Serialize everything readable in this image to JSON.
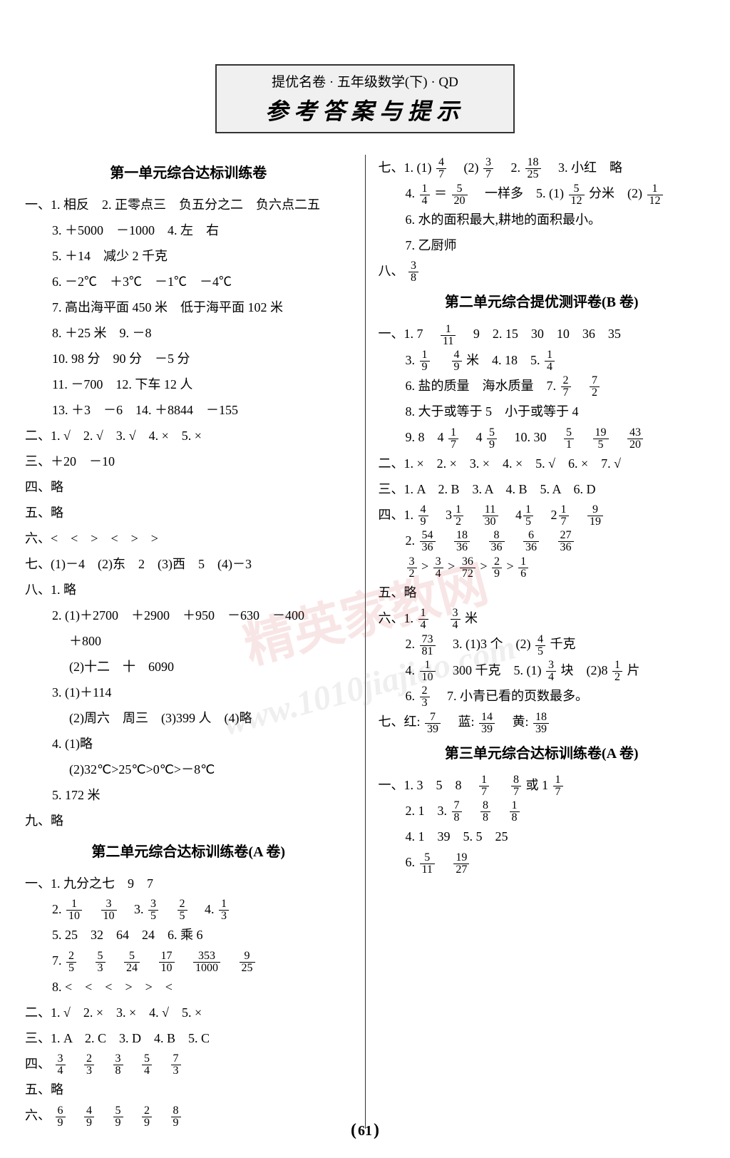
{
  "header": {
    "top": "提优名卷 · 五年级数学(下) · QD",
    "main": "参考答案与提示"
  },
  "page_number": "61",
  "watermark1": "精英家教网",
  "watermark2": "www.1010jiajiao.com",
  "left": {
    "s1_title": "第一单元综合达标训练卷",
    "l1": "一、1. 相反　2. 正零点三　负五分之二　负六点二五",
    "l2": "3. ＋5000　－1000　4. 左　右",
    "l3": "5. ＋14　减少 2 千克",
    "l4": "6. －2℃　＋3℃　－1℃　－4℃",
    "l5": "7. 高出海平面 450 米　低于海平面 102 米",
    "l6": "8. ＋25 米　9. －8",
    "l7": "10. 98 分　90 分　－5 分",
    "l8": "11. －700　12. 下车 12 人",
    "l9": "13. ＋3　－6　14. ＋8844　－155",
    "l10": "二、1. √　2. √　3. √　4. ×　5. ×",
    "l11": "三、＋20　－10",
    "l12": "四、略",
    "l13": "五、略",
    "l14": "六、<　<　>　<　>　>",
    "l15": "七、(1)－4　(2)东　2　(3)西　5　(4)－3",
    "l16": "八、1. 略",
    "l17": "2. (1)＋2700　＋2900　＋950　－630　－400",
    "l17b": "＋800",
    "l18": "(2)十二　十　6090",
    "l19": "3. (1)＋114",
    "l20": "(2)周六　周三　(3)399 人　(4)略",
    "l21": "4. (1)略",
    "l22": "(2)32℃>25℃>0℃>－8℃",
    "l23": "5. 172 米",
    "l24": "九、略",
    "s2_title": "第二单元综合达标训练卷(A 卷)",
    "l25": "一、1. 九分之七　9　7",
    "l26a": "2. ",
    "l26b": "　3. ",
    "l26c": "　4. ",
    "f1_10": {
      "n": "1",
      "d": "10"
    },
    "f3_10": {
      "n": "3",
      "d": "10"
    },
    "f3_5": {
      "n": "3",
      "d": "5"
    },
    "f2_5": {
      "n": "2",
      "d": "5"
    },
    "f1_3": {
      "n": "1",
      "d": "3"
    },
    "l27": "5. 25　32　64　24　6. 乘 6",
    "l28a": "7. ",
    "f2_5b": {
      "n": "2",
      "d": "5"
    },
    "f5_3": {
      "n": "5",
      "d": "3"
    },
    "f5_24": {
      "n": "5",
      "d": "24"
    },
    "f17_10": {
      "n": "17",
      "d": "10"
    },
    "f353_1000": {
      "n": "353",
      "d": "1000"
    },
    "f9_25": {
      "n": "9",
      "d": "25"
    },
    "l29": "8. <　<　<　>　>　<",
    "l30": "二、1. √　2. ×　3. ×　4. √　5. ×",
    "l31": "三、1. A　2. C　3. D　4. B　5. C",
    "l32a": "四、",
    "f3_4": {
      "n": "3",
      "d": "4"
    },
    "f2_3": {
      "n": "2",
      "d": "3"
    },
    "f3_8": {
      "n": "3",
      "d": "8"
    },
    "f5_4": {
      "n": "5",
      "d": "4"
    },
    "f7_3": {
      "n": "7",
      "d": "3"
    },
    "l33": "五、略",
    "l34a": "六、",
    "f6_9": {
      "n": "6",
      "d": "9"
    },
    "f4_9": {
      "n": "4",
      "d": "9"
    },
    "f5_9": {
      "n": "5",
      "d": "9"
    },
    "f2_9": {
      "n": "2",
      "d": "9"
    },
    "f8_9": {
      "n": "8",
      "d": "9"
    }
  },
  "right": {
    "l1a": "七、1. (1)",
    "l1b": "　(2)",
    "l1c": "　2. ",
    "l1d": "　3. 小红　略",
    "f4_7": {
      "n": "4",
      "d": "7"
    },
    "f3_7": {
      "n": "3",
      "d": "7"
    },
    "f18_25": {
      "n": "18",
      "d": "25"
    },
    "l2a": "4. ",
    "l2b": "＝",
    "l2c": "　一样多　5. (1)",
    "l2d": "分米　(2)",
    "f1_4": {
      "n": "1",
      "d": "4"
    },
    "f5_20": {
      "n": "5",
      "d": "20"
    },
    "f5_12": {
      "n": "5",
      "d": "12"
    },
    "f1_12": {
      "n": "1",
      "d": "12"
    },
    "l3": "6. 水的面积最大,耕地的面积最小。",
    "l4": "7. 乙厨师",
    "l5a": "八、",
    "f3_8b": {
      "n": "3",
      "d": "8"
    },
    "s2_title": "第二单元综合提优测评卷(B 卷)",
    "l6a": "一、1. 7　",
    "l6b": "　9　2. 15　30　10　36　35",
    "f1_11": {
      "n": "1",
      "d": "11"
    },
    "l7a": "3. ",
    "l7b": "　",
    "l7c": "米　4. 18　5. ",
    "f1_9": {
      "n": "1",
      "d": "9"
    },
    "f4_9b": {
      "n": "4",
      "d": "9"
    },
    "f1_4b": {
      "n": "1",
      "d": "4"
    },
    "l8a": "6. 盐的质量　海水质量　7. ",
    "f2_7": {
      "n": "2",
      "d": "7"
    },
    "f7_2": {
      "n": "7",
      "d": "2"
    },
    "l9": "8. 大于或等于 5　小于或等于 4",
    "l10a": "9. 8　4",
    "l10b": "　4",
    "l10c": "　10. 30　",
    "f1_7": {
      "n": "1",
      "d": "7"
    },
    "f5_9b": {
      "n": "5",
      "d": "9"
    },
    "f5_1": {
      "n": "5",
      "d": "1"
    },
    "f19_5": {
      "n": "19",
      "d": "5"
    },
    "f43_20": {
      "n": "43",
      "d": "20"
    },
    "l11": "二、1. ×　2. ×　3. ×　4. ×　5. √　6. ×　7. √",
    "l12": "三、1. A　2. B　3. A　4. B　5. A　6. D",
    "l13a": "四、1. ",
    "f4_9c": {
      "n": "4",
      "d": "9"
    },
    "f1_2": {
      "n": "1",
      "d": "2"
    },
    "f11_30": {
      "n": "11",
      "d": "30"
    },
    "f1_5": {
      "n": "1",
      "d": "5"
    },
    "f1_7b": {
      "n": "1",
      "d": "7"
    },
    "f9_19": {
      "n": "9",
      "d": "19"
    },
    "l14a": "2. ",
    "f54_36": {
      "n": "54",
      "d": "36"
    },
    "f18_36": {
      "n": "18",
      "d": "36"
    },
    "f8_36": {
      "n": "8",
      "d": "36"
    },
    "f6_36": {
      "n": "6",
      "d": "36"
    },
    "f27_36": {
      "n": "27",
      "d": "36"
    },
    "l15a": "",
    "f3_2": {
      "n": "3",
      "d": "2"
    },
    "f3_4b": {
      "n": "3",
      "d": "4"
    },
    "f36_72": {
      "n": "36",
      "d": "72"
    },
    "f2_9b": {
      "n": "2",
      "d": "9"
    },
    "f1_6": {
      "n": "1",
      "d": "6"
    },
    "l16": "五、略",
    "l17a": "六、1. ",
    "l17b": "　",
    "l17c": "米",
    "f1_4c": {
      "n": "1",
      "d": "4"
    },
    "f3_4c": {
      "n": "3",
      "d": "4"
    },
    "l18a": "2. ",
    "l18b": "　3. (1)3 个　(2)",
    "l18c": "千克",
    "f73_81": {
      "n": "73",
      "d": "81"
    },
    "f4_5": {
      "n": "4",
      "d": "5"
    },
    "l19a": "4. ",
    "l19b": "　300 千克　5. (1)",
    "l19c": "块　(2)8",
    "l19d": "片",
    "f1_10b": {
      "n": "1",
      "d": "10"
    },
    "f3_4d": {
      "n": "3",
      "d": "4"
    },
    "f1_2b": {
      "n": "1",
      "d": "2"
    },
    "l20a": "6. ",
    "l20b": "　7. 小青已看的页数最多。",
    "f2_3b": {
      "n": "2",
      "d": "3"
    },
    "l21a": "七、红:",
    "l21b": "　蓝:",
    "l21c": "　黄:",
    "f7_39": {
      "n": "7",
      "d": "39"
    },
    "f14_39": {
      "n": "14",
      "d": "39"
    },
    "f18_39": {
      "n": "18",
      "d": "39"
    },
    "s3_title": "第三单元综合达标训练卷(A 卷)",
    "l22a": "一、1. 3　5　8　",
    "l22b": "　",
    "l22c": "或 1",
    "f1_7c": {
      "n": "1",
      "d": "7"
    },
    "f8_7": {
      "n": "8",
      "d": "7"
    },
    "f1_7d": {
      "n": "1",
      "d": "7"
    },
    "l23a": "2. 1　3. ",
    "f7_8": {
      "n": "7",
      "d": "8"
    },
    "f8_8": {
      "n": "8",
      "d": "8"
    },
    "f1_8": {
      "n": "1",
      "d": "8"
    },
    "l24": "4. 1　39　5. 5　25",
    "l25a": "6. ",
    "f5_11": {
      "n": "5",
      "d": "11"
    },
    "f19_27": {
      "n": "19",
      "d": "27"
    }
  }
}
